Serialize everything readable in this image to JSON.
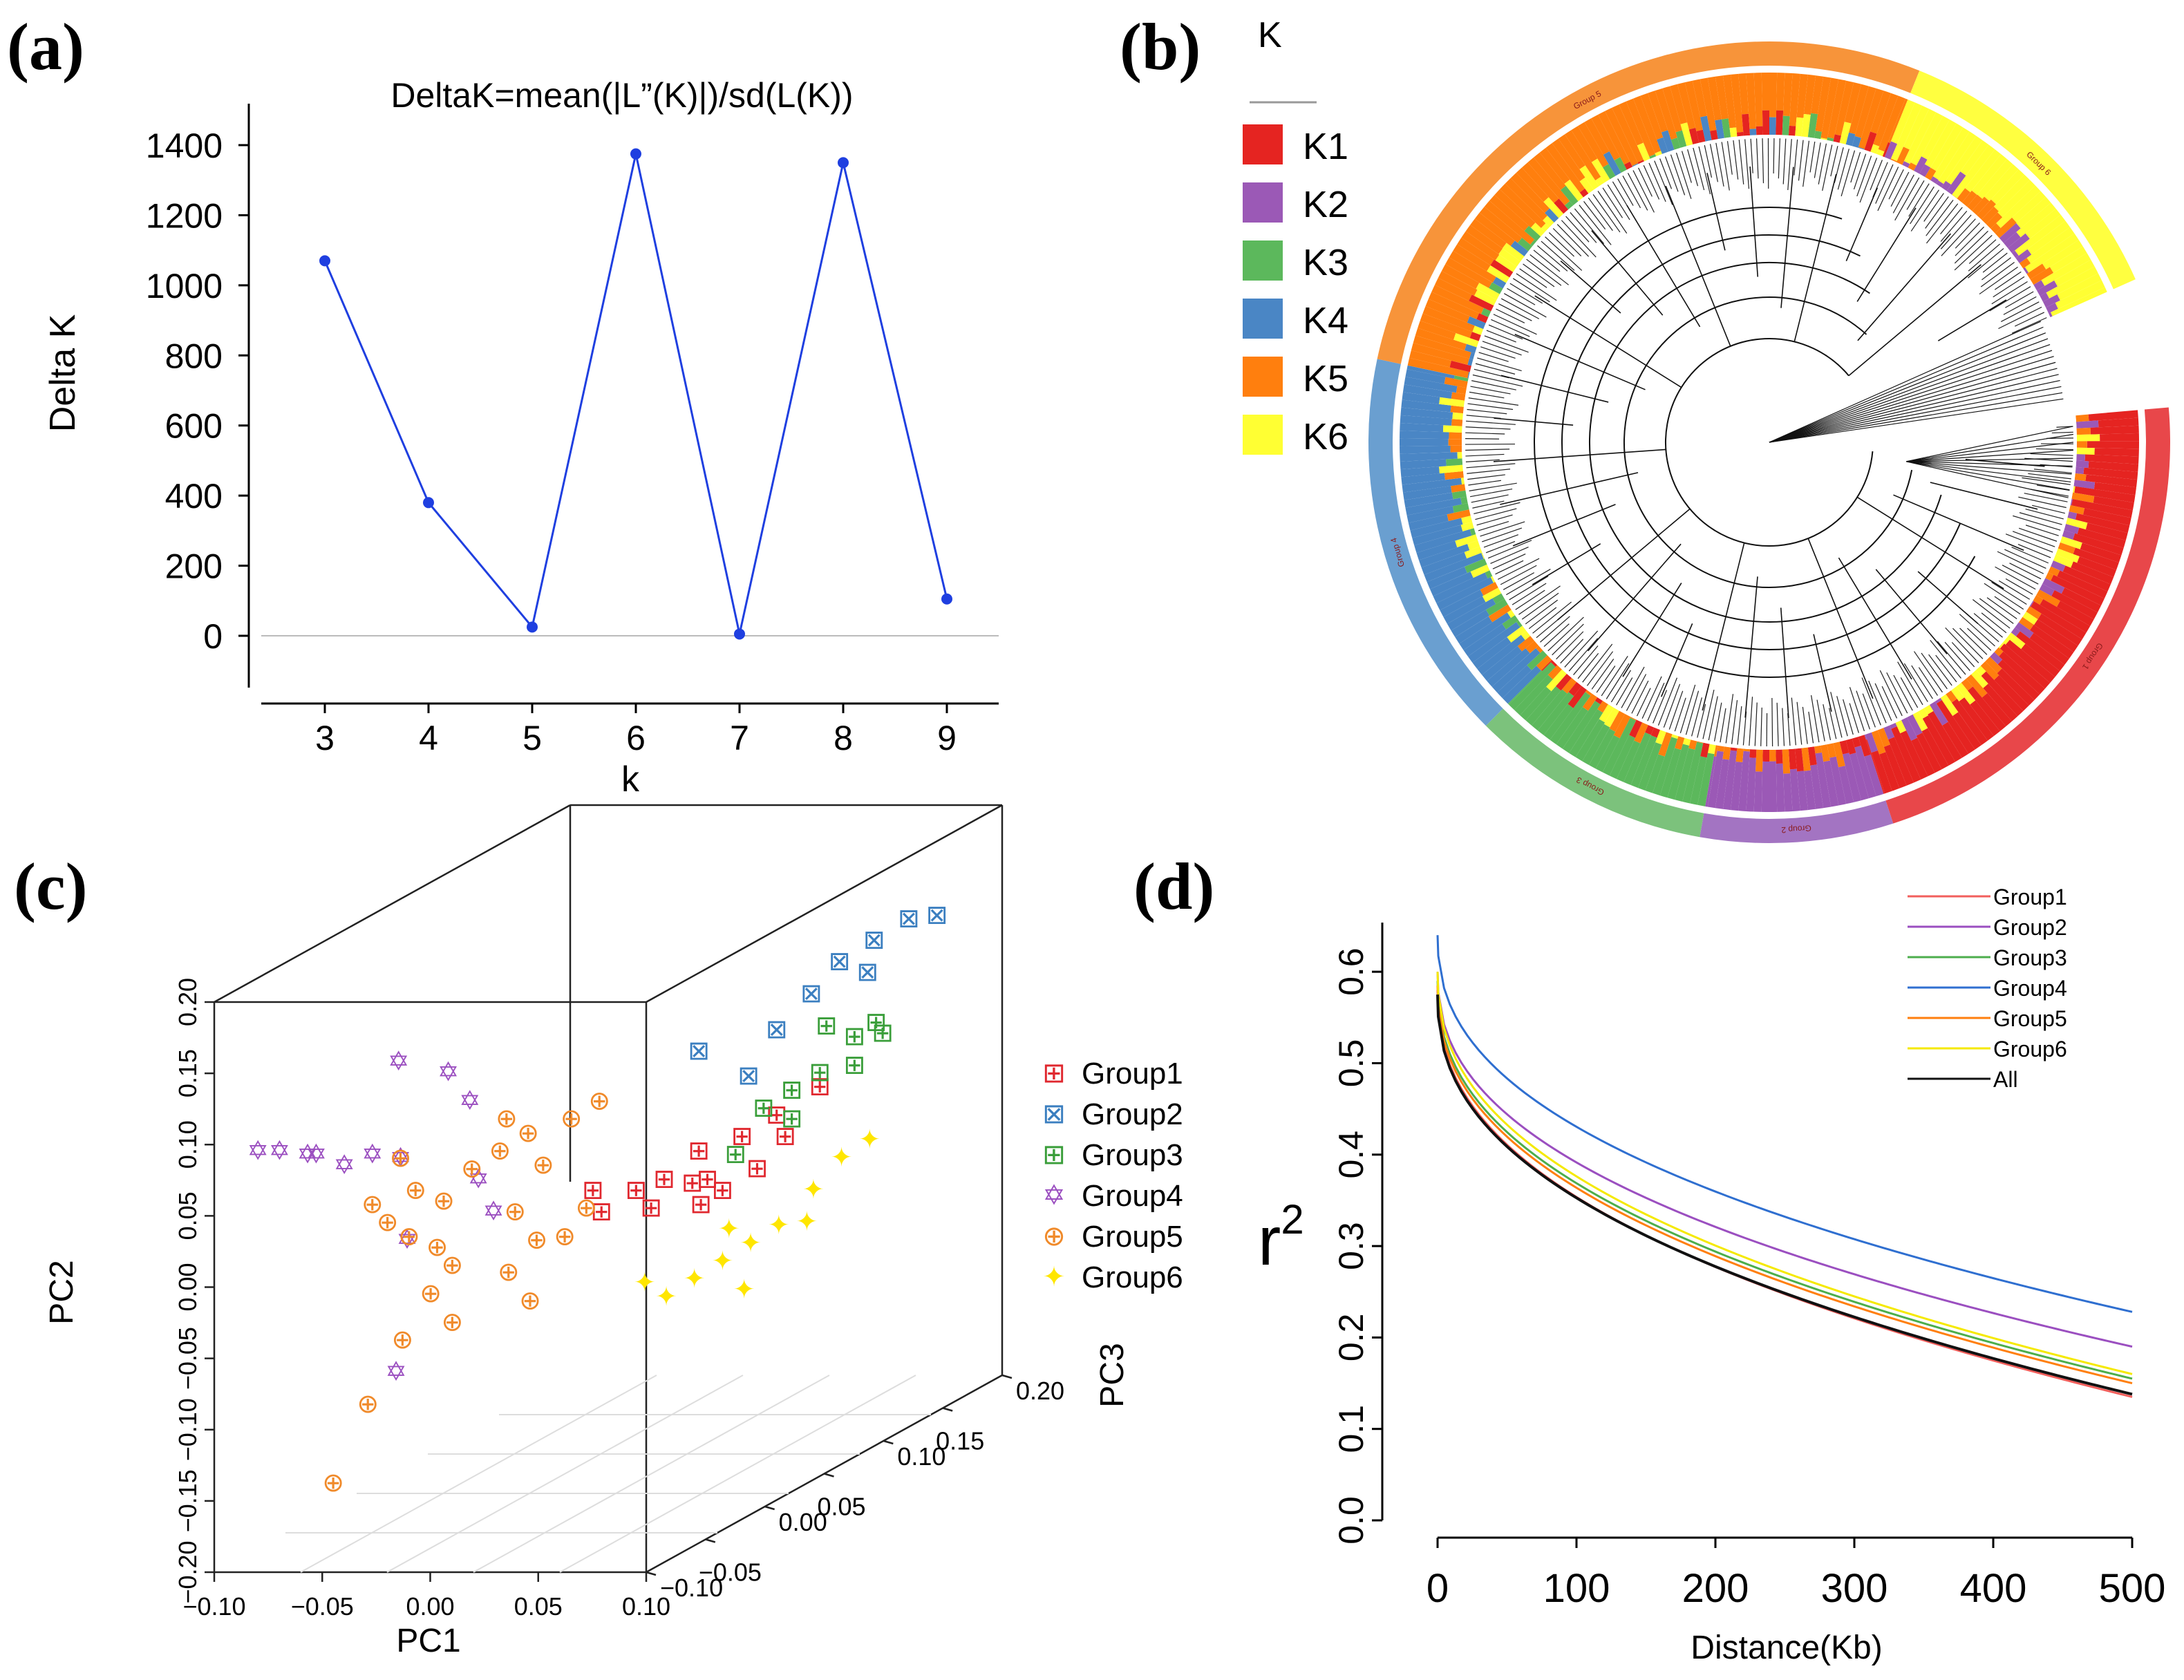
{
  "panels": {
    "a": "(a)",
    "b": "(b)",
    "c": "(c)",
    "d": "(d)"
  },
  "chart_data": [
    {
      "id": "a",
      "type": "line",
      "title": "DeltaK=mean(|L”(K)|)/sd(L(K))",
      "xlabel": "k",
      "ylabel": "Delta K",
      "x": [
        3,
        4,
        5,
        6,
        7,
        8,
        9
      ],
      "values": [
        1070,
        380,
        25,
        1375,
        5,
        1350,
        105
      ],
      "ylim": [
        -150,
        1500
      ],
      "yticks": [
        0,
        200,
        400,
        600,
        800,
        1000,
        1200,
        1400
      ],
      "color": "#1f3fe0"
    },
    {
      "id": "b",
      "type": "other",
      "description_kind": "circular-tree-with-admixture",
      "legend_title": "K",
      "legend": [
        {
          "label": "K1",
          "color": "#e52421"
        },
        {
          "label": "K2",
          "color": "#9b59b6"
        },
        {
          "label": "K3",
          "color": "#5cb85c"
        },
        {
          "label": "K4",
          "color": "#4a86c5"
        },
        {
          "label": "K5",
          "color": "#ff7f0e"
        },
        {
          "label": "K6",
          "color": "#ffff33"
        }
      ],
      "group_ring": [
        {
          "label": "Group 1",
          "color": "#e8474a"
        },
        {
          "label": "Group 2",
          "color": "#a374c2"
        },
        {
          "label": "Group 3",
          "color": "#7cc27c"
        },
        {
          "label": "Group 4",
          "color": "#6a9fd0"
        },
        {
          "label": "Group 5",
          "color": "#f7943a"
        },
        {
          "label": "Group 6",
          "color": "#ffff40"
        }
      ]
    },
    {
      "id": "c",
      "type": "scatter",
      "xlabel": "PC1",
      "ylabel": "PC2",
      "zlabel": "PC3",
      "x_ticks": [
        "−0.10",
        "−0.05",
        "0.00",
        "0.05",
        "0.10"
      ],
      "y_ticks": [
        "−0.20",
        "−0.15",
        "−0.10",
        "−0.05",
        "0.00",
        "0.05",
        "0.10",
        "0.15",
        "0.20"
      ],
      "z_ticks": [
        "−0.10",
        "−0.05",
        "0.00",
        "0.05",
        "0.10",
        "0.15",
        "0.20"
      ],
      "series": [
        {
          "name": "Group1",
          "color": "#e0282f",
          "symbol": "⊞",
          "points": [
            [
              0.03,
              0.03,
              0.05
            ],
            [
              0.05,
              0.03,
              0.05
            ],
            [
              0.06,
              0.035,
              0.06
            ],
            [
              0.07,
              0.03,
              0.07
            ],
            [
              0.08,
              0.035,
              0.06
            ],
            [
              0.09,
              0.03,
              0.05
            ],
            [
              0.1,
              0.04,
              0.07
            ],
            [
              0.07,
              0.05,
              0.08
            ],
            [
              0.1,
              0.07,
              0.1
            ],
            [
              0.12,
              0.09,
              0.1
            ],
            [
              0.08,
              0.02,
              0.05
            ],
            [
              0.06,
              0.02,
              0.04
            ],
            [
              0.04,
              0.02,
              0.03
            ],
            [
              0.11,
              0.06,
              0.08
            ],
            [
              0.09,
              0.06,
              0.08
            ]
          ]
        },
        {
          "name": "Group2",
          "color": "#3b7fc0",
          "symbol": "⊠",
          "points": [
            [
              0.12,
              0.17,
              0.13
            ],
            [
              0.13,
              0.18,
              0.15
            ],
            [
              0.14,
              0.19,
              0.17
            ],
            [
              0.11,
              0.15,
              0.12
            ],
            [
              0.1,
              0.13,
              0.1
            ],
            [
              0.07,
              0.12,
              0.08
            ],
            [
              0.09,
              0.1,
              0.09
            ],
            [
              0.15,
              0.19,
              0.18
            ],
            [
              0.13,
              0.16,
              0.14
            ]
          ]
        },
        {
          "name": "Group3",
          "color": "#3a9e3a",
          "symbol": "⊞",
          "points": [
            [
              0.12,
              0.1,
              0.1
            ],
            [
              0.13,
              0.12,
              0.12
            ],
            [
              0.14,
              0.12,
              0.13
            ],
            [
              0.11,
              0.09,
              0.09
            ],
            [
              0.1,
              0.08,
              0.08
            ],
            [
              0.12,
              0.13,
              0.11
            ],
            [
              0.09,
              0.05,
              0.07
            ],
            [
              0.13,
              0.1,
              0.12
            ],
            [
              0.11,
              0.07,
              0.09
            ],
            [
              0.14,
              0.13,
              0.12
            ]
          ]
        },
        {
          "name": "Group4",
          "color": "#9b4fc0",
          "symbol": "✡",
          "points": [
            [
              -0.11,
              0.07,
              0.0
            ],
            [
              -0.1,
              0.07,
              0.0
            ],
            [
              -0.09,
              0.065,
              0.01
            ],
            [
              -0.08,
              0.07,
              -0.01
            ],
            [
              -0.07,
              0.06,
              0.0
            ],
            [
              -0.06,
              0.065,
              0.01
            ],
            [
              -0.05,
              0.06,
              0.02
            ],
            [
              -0.06,
              0.12,
              0.05
            ],
            [
              -0.04,
              0.11,
              0.06
            ],
            [
              -0.03,
              0.09,
              0.06
            ],
            [
              -0.02,
              0.04,
              0.04
            ],
            [
              -0.04,
              -0.08,
              -0.02
            ],
            [
              -0.01,
              0.02,
              0.03
            ],
            [
              -0.05,
              0.0,
              0.03
            ]
          ]
        },
        {
          "name": "Group5",
          "color": "#f08a2a",
          "symbol": "⊕",
          "points": [
            [
              -0.06,
              0.03,
              0.01
            ],
            [
              -0.05,
              0.02,
              0.0
            ],
            [
              -0.04,
              0.01,
              0.0
            ],
            [
              -0.03,
              0.0,
              0.01
            ],
            [
              -0.02,
              -0.01,
              0.0
            ],
            [
              -0.03,
              0.03,
              0.02
            ],
            [
              -0.02,
              0.05,
              0.03
            ],
            [
              -0.01,
              0.06,
              0.04
            ],
            [
              0.0,
              0.07,
              0.05
            ],
            [
              0.01,
              0.05,
              0.04
            ],
            [
              0.0,
              0.02,
              0.03
            ],
            [
              0.01,
              0.0,
              0.03
            ],
            [
              -0.04,
              -0.06,
              -0.01
            ],
            [
              -0.05,
              -0.1,
              -0.03
            ],
            [
              -0.06,
              -0.15,
              -0.05
            ],
            [
              0.02,
              0.08,
              0.05
            ],
            [
              0.03,
              0.09,
              0.06
            ],
            [
              -0.05,
              0.06,
              0.02
            ],
            [
              -0.04,
              0.04,
              0.01
            ],
            [
              0.02,
              0.0,
              0.04
            ],
            [
              -0.02,
              -0.05,
              0.0
            ],
            [
              0.01,
              -0.04,
              0.02
            ],
            [
              -0.01,
              0.08,
              0.05
            ],
            [
              0.0,
              -0.02,
              0.02
            ],
            [
              -0.03,
              -0.03,
              0.0
            ],
            [
              0.03,
              0.02,
              0.04
            ]
          ]
        },
        {
          "name": "Group6",
          "color": "#ffe600",
          "symbol": "✦",
          "points": [
            [
              0.08,
              -0.03,
              0.04
            ],
            [
              0.09,
              -0.02,
              0.05
            ],
            [
              0.1,
              -0.01,
              0.06
            ],
            [
              0.11,
              0.0,
              0.07
            ],
            [
              0.12,
              0.02,
              0.09
            ],
            [
              0.13,
              0.04,
              0.1
            ],
            [
              0.07,
              -0.04,
              0.03
            ],
            [
              0.06,
              -0.03,
              0.03
            ],
            [
              0.1,
              -0.04,
              0.05
            ],
            [
              0.12,
              0.0,
              0.08
            ],
            [
              0.14,
              0.05,
              0.11
            ],
            [
              0.09,
              0.0,
              0.06
            ]
          ]
        }
      ]
    },
    {
      "id": "d",
      "type": "line",
      "xlabel": "Distance(Kb)",
      "ylabel": "r2",
      "xlim": [
        0,
        500
      ],
      "ylim": [
        0,
        0.65
      ],
      "xticks": [
        0,
        100,
        200,
        300,
        400,
        500
      ],
      "yticks": [
        0.0,
        0.1,
        0.2,
        0.3,
        0.4,
        0.5,
        0.6
      ],
      "series": [
        {
          "name": "Group1",
          "color": "#f25f5c",
          "start": 0.58,
          "end": 0.135
        },
        {
          "name": "Group2",
          "color": "#9b4fc0",
          "start": 0.6,
          "end": 0.19
        },
        {
          "name": "Group3",
          "color": "#4cae4c",
          "start": 0.59,
          "end": 0.155
        },
        {
          "name": "Group4",
          "color": "#2f6fd0",
          "start": 0.64,
          "end": 0.228
        },
        {
          "name": "Group5",
          "color": "#ff7f0e",
          "start": 0.585,
          "end": 0.15
        },
        {
          "name": "Group6",
          "color": "#f5e900",
          "start": 0.6,
          "end": 0.16
        },
        {
          "name": "All",
          "color": "#111111",
          "start": 0.575,
          "end": 0.138
        }
      ]
    }
  ]
}
